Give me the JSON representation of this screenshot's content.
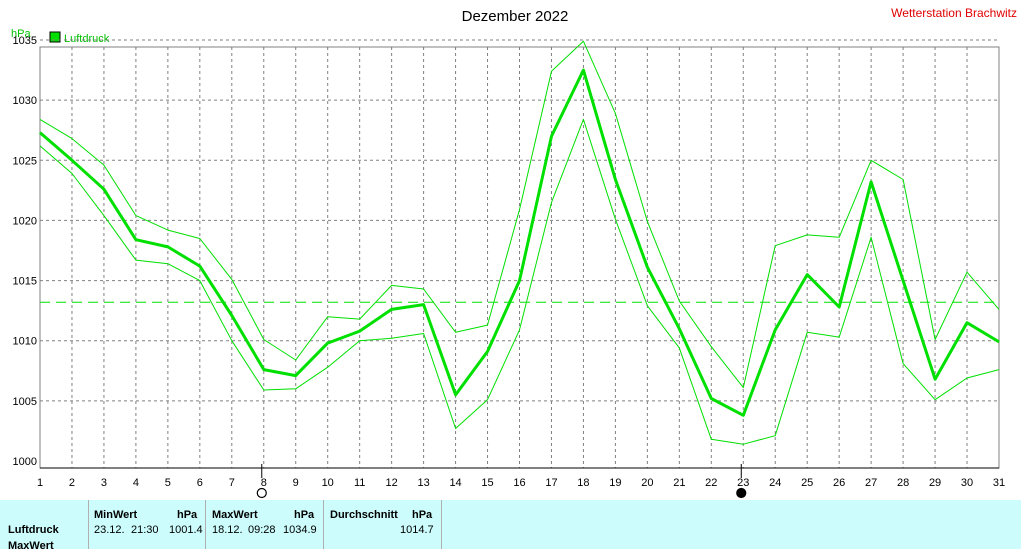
{
  "chart_data": {
    "type": "line",
    "title": "Dezember 2022",
    "station": "Wetterstation Brachwitz",
    "yunit": "hPa",
    "ylim": [
      1000,
      1035
    ],
    "yticks": [
      1000,
      1005,
      1010,
      1015,
      1020,
      1025,
      1030,
      1035
    ],
    "xlim": [
      1,
      31
    ],
    "x": [
      1,
      2,
      3,
      4,
      5,
      6,
      7,
      8,
      9,
      10,
      11,
      12,
      13,
      14,
      15,
      16,
      17,
      18,
      19,
      20,
      21,
      22,
      23,
      24,
      25,
      26,
      27,
      28,
      29,
      30,
      31
    ],
    "grid": true,
    "legend": {
      "label": "Luftdruck",
      "color": "#00e000",
      "position": "top-left"
    },
    "average_line": 1013.2,
    "series": [
      {
        "name": "Luftdruck",
        "role": "mean",
        "values": [
          1027.3,
          1025.0,
          1022.6,
          1018.4,
          1017.8,
          1016.2,
          1012.1,
          1007.6,
          1007.1,
          1009.8,
          1010.8,
          1012.6,
          1013.0,
          1005.5,
          1009.1,
          1015.0,
          1027.0,
          1032.5,
          1023.4,
          1016.1,
          1011.0,
          1005.2,
          1003.8,
          1010.9,
          1015.5,
          1012.8,
          1023.2,
          1015.0,
          1006.8,
          1011.5,
          1009.9
        ]
      },
      {
        "name": "max",
        "role": "daily-max",
        "values": [
          1028.4,
          1026.8,
          1024.6,
          1020.4,
          1019.2,
          1018.5,
          1015.1,
          1010.1,
          1008.4,
          1012.0,
          1011.8,
          1014.6,
          1014.3,
          1010.7,
          1011.3,
          1020.9,
          1032.4,
          1034.9,
          1028.9,
          1019.9,
          1013.3,
          1009.5,
          1006.1,
          1017.9,
          1018.8,
          1018.6,
          1025.0,
          1023.4,
          1010.1,
          1015.7,
          1012.6
        ]
      },
      {
        "name": "min",
        "role": "daily-min",
        "values": [
          1026.2,
          1023.9,
          1020.4,
          1016.7,
          1016.4,
          1015.0,
          1010.0,
          1005.9,
          1006.0,
          1007.8,
          1010.0,
          1010.2,
          1010.6,
          1002.7,
          1005.1,
          1010.9,
          1021.5,
          1028.4,
          1020.1,
          1012.9,
          1009.4,
          1001.8,
          1001.4,
          1002.1,
          1010.7,
          1010.3,
          1018.6,
          1008.1,
          1005.1,
          1006.9,
          1007.6
        ]
      }
    ],
    "markers": [
      {
        "x": 8,
        "symbol": "open-circle",
        "meaning": "Vollmond"
      },
      {
        "x": 23,
        "symbol": "filled-circle",
        "meaning": "Neumond"
      }
    ]
  },
  "table": {
    "row_label_1": "Luftdruck",
    "row_label_2": "MaxWert",
    "min": {
      "header": "MinWert",
      "unit": "hPa",
      "date": "23.12.",
      "time": "21:30",
      "value": "1001.4"
    },
    "max": {
      "header": "MaxWert",
      "unit": "hPa",
      "date": "18.12.",
      "time": "09:28",
      "value": "1034.9"
    },
    "avg": {
      "header": "Durchschnitt",
      "unit": "hPa",
      "value": "1014.7"
    }
  }
}
